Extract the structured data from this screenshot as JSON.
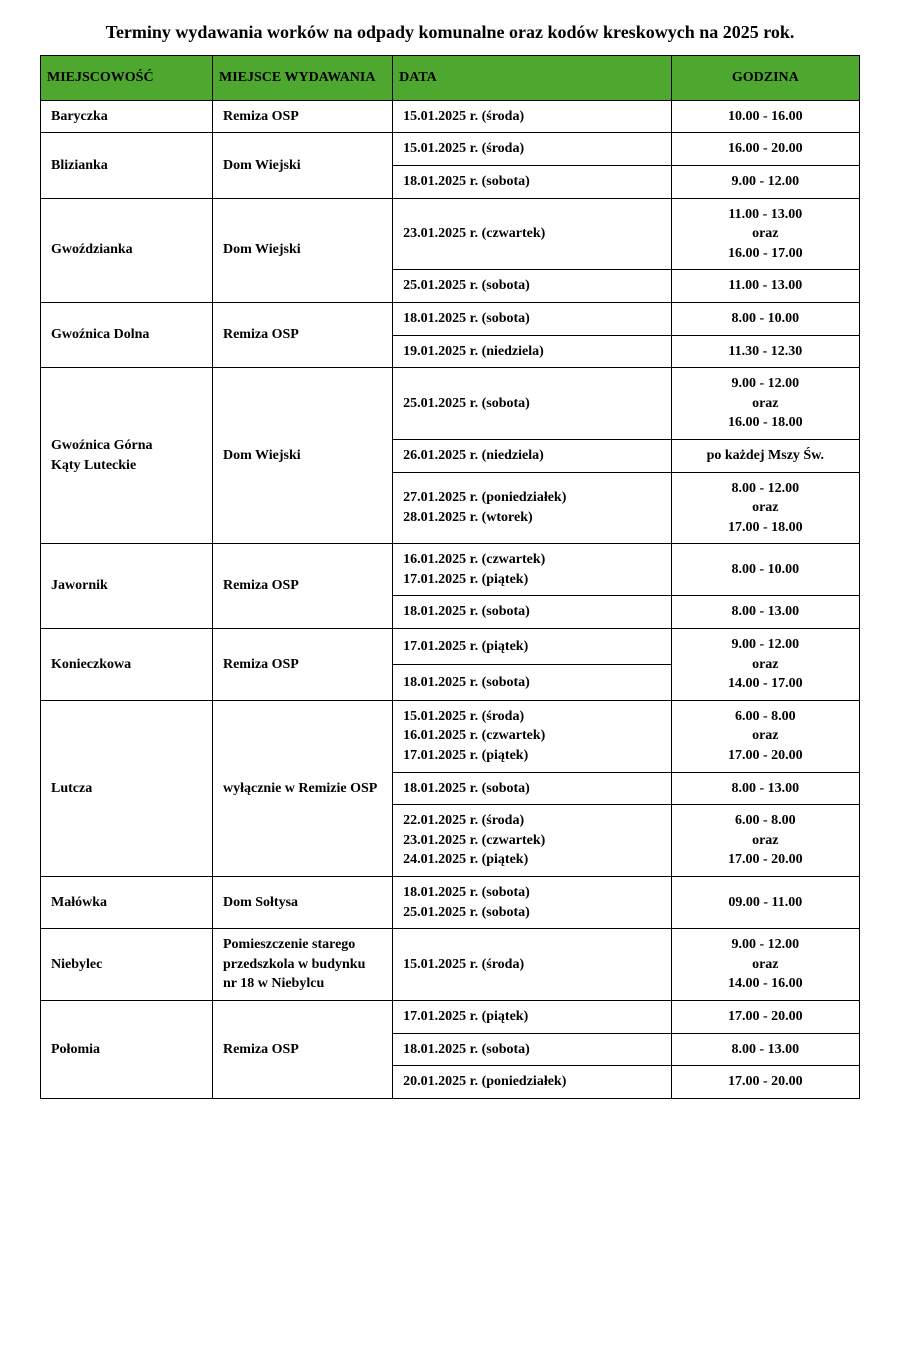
{
  "title": "Terminy wydawania worków na odpady komunalne oraz kodów kreskowych  na 2025 rok.",
  "header_bg": "#4ea72e",
  "header_fg": "#000000",
  "columns": {
    "locality": "MIEJSCOWOŚĆ",
    "place": "MIEJSCE WYDAWANIA",
    "date": "DATA",
    "time": "GODZINA"
  },
  "rows": [
    {
      "locality": "Baryczka",
      "place": "Remiza OSP",
      "date": "15.01.2025 r. (środa)",
      "time": "10.00 - 16.00"
    },
    {
      "locality": "Blizianka",
      "locality_rowspan": 2,
      "place": "Dom Wiejski",
      "place_rowspan": 2,
      "date": "15.01.2025 r. (środa)",
      "time": "16.00 - 20.00"
    },
    {
      "date": "18.01.2025 r.  (sobota)",
      "time": "9.00 - 12.00"
    },
    {
      "locality": "Gwoździanka",
      "locality_rowspan": 2,
      "place": "Dom Wiejski",
      "place_rowspan": 2,
      "date": "23.01.2025 r. (czwartek)",
      "time": "11.00 -  13.00\noraz\n16.00 - 17.00"
    },
    {
      "date": "25.01.2025 r. (sobota)",
      "time": "11.00 - 13.00"
    },
    {
      "locality": "Gwoźnica Dolna",
      "locality_rowspan": 2,
      "place": "Remiza OSP",
      "place_rowspan": 2,
      "date": "18.01.2025 r. (sobota)",
      "time": "8.00 - 10.00"
    },
    {
      "date": "19.01.2025 r. (niedziela)",
      "time": "11.30 - 12.30"
    },
    {
      "locality": "Gwoźnica Górna\nKąty Luteckie",
      "locality_rowspan": 3,
      "place": "Dom Wiejski",
      "place_rowspan": 3,
      "date": "25.01.2025 r. (sobota)",
      "time": "9.00 - 12.00\noraz\n16.00 - 18.00"
    },
    {
      "date": "26.01.2025 r. (niedziela)",
      "time": "po każdej Mszy Św."
    },
    {
      "date": "27.01.2025 r. (poniedziałek)\n28.01.2025 r. (wtorek)",
      "time": "8.00 - 12.00\noraz\n17.00 - 18.00"
    },
    {
      "locality": "Jawornik",
      "locality_rowspan": 2,
      "place": "Remiza OSP",
      "place_rowspan": 2,
      "date": "16.01.2025 r. (czwartek)\n17.01.2025 r. (piątek)",
      "time": "8.00 - 10.00"
    },
    {
      "date": "18.01.2025 r. (sobota)",
      "time": "8.00 - 13.00"
    },
    {
      "locality": "Konieczkowa",
      "locality_rowspan": 2,
      "place": "Remiza OSP",
      "place_rowspan": 2,
      "date": "17.01.2025 r. (piątek)",
      "time": "9.00 - 12.00\noraz\n14.00 - 17.00",
      "time_rowspan": 2
    },
    {
      "date": "18.01.2025 r. (sobota)"
    },
    {
      "locality": "Lutcza",
      "locality_rowspan": 3,
      "place": "wyłącznie w Remizie OSP",
      "place_rowspan": 3,
      "date": "15.01.2025 r. (środa)\n16.01.2025 r. (czwartek)\n17.01.2025 r. (piątek)",
      "time": "6.00 - 8.00\noraz\n17.00 - 20.00"
    },
    {
      "date": "18.01.2025 r. (sobota)",
      "time": "8.00 - 13.00"
    },
    {
      "date": "22.01.2025 r. (środa)\n23.01.2025 r. (czwartek)\n24.01.2025 r. (piątek)",
      "time": "6.00 - 8.00\noraz\n17.00 - 20.00"
    },
    {
      "locality": "Małówka",
      "place": "Dom Sołtysa",
      "date": "18.01.2025 r. (sobota)\n25.01.2025 r. (sobota)",
      "time": "09.00 - 11.00"
    },
    {
      "locality": "Niebylec",
      "place": "Pomieszczenie starego przedszkola w  budynku nr 18 w Niebylcu",
      "date": "15.01.2025 r. (środa)",
      "time": "9.00 - 12.00\noraz\n14.00 - 16.00"
    },
    {
      "locality": "Połomia",
      "locality_rowspan": 3,
      "place": "Remiza OSP",
      "place_rowspan": 3,
      "date": "17.01.2025 r. (piątek)",
      "time": "17.00 - 20.00"
    },
    {
      "date": "18.01.2025 r. (sobota)",
      "time": "8.00  - 13.00"
    },
    {
      "date": "20.01.2025 r. (poniedziałek)",
      "time": "17.00 - 20.00"
    }
  ]
}
